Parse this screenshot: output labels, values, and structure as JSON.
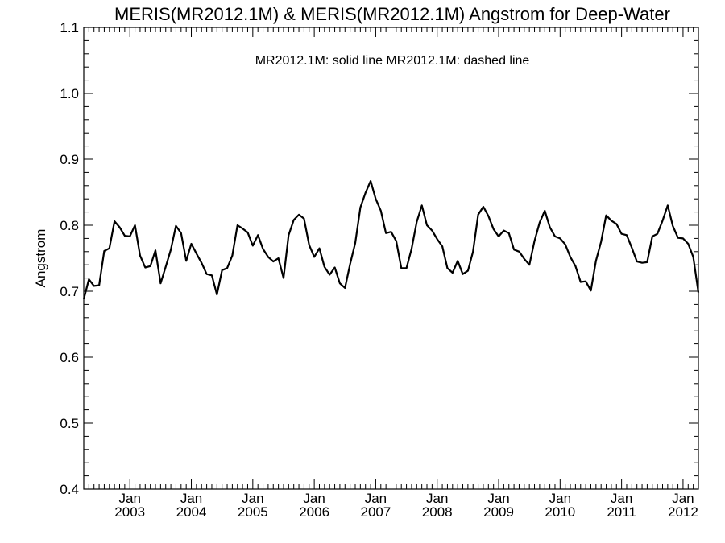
{
  "chart_data": {
    "type": "line",
    "title": "MERIS(MR2012.1M) & MERIS(MR2012.1M)  Angstrom for Deep-Water",
    "annotation": "MR2012.1M: solid line   MR2012.1M: dashed line",
    "xlabel": "",
    "ylabel": "Angstrom",
    "ylim": [
      0.4,
      1.1
    ],
    "yticks": [
      "0.4",
      "0.5",
      "0.6",
      "0.7",
      "0.8",
      "0.9",
      "1.0",
      "1.1"
    ],
    "xlim": [
      "2002-04",
      "2012-04"
    ],
    "xticks": [
      {
        "month": "Jan",
        "year": "2003"
      },
      {
        "month": "Jan",
        "year": "2004"
      },
      {
        "month": "Jan",
        "year": "2005"
      },
      {
        "month": "Jan",
        "year": "2006"
      },
      {
        "month": "Jan",
        "year": "2007"
      },
      {
        "month": "Jan",
        "year": "2008"
      },
      {
        "month": "Jan",
        "year": "2009"
      },
      {
        "month": "Jan",
        "year": "2010"
      },
      {
        "month": "Jan",
        "year": "2011"
      },
      {
        "month": "Jan",
        "year": "2012"
      }
    ],
    "grid": false,
    "series": [
      {
        "style": "solid",
        "x_start": "2002-04",
        "x_step": "1 month",
        "values": [
          0.688,
          0.718,
          0.708,
          0.709,
          0.761,
          0.765,
          0.806,
          0.797,
          0.784,
          0.783,
          0.8,
          0.754,
          0.736,
          0.738,
          0.762,
          0.712,
          0.737,
          0.763,
          0.799,
          0.788,
          0.746,
          0.772,
          0.757,
          0.743,
          0.726,
          0.724,
          0.695,
          0.732,
          0.735,
          0.754,
          0.8,
          0.795,
          0.789,
          0.769,
          0.785,
          0.764,
          0.752,
          0.745,
          0.75,
          0.72,
          0.785,
          0.808,
          0.816,
          0.81,
          0.77,
          0.752,
          0.765,
          0.737,
          0.725,
          0.736,
          0.712,
          0.705,
          0.741,
          0.773,
          0.827,
          0.849,
          0.867,
          0.84,
          0.822,
          0.788,
          0.79,
          0.776,
          0.735,
          0.735,
          0.764,
          0.805,
          0.83,
          0.8,
          0.792,
          0.779,
          0.768,
          0.735,
          0.728,
          0.746,
          0.726,
          0.731,
          0.76,
          0.816,
          0.828,
          0.814,
          0.794,
          0.783,
          0.792,
          0.788,
          0.763,
          0.76,
          0.749,
          0.74,
          0.776,
          0.804,
          0.822,
          0.797,
          0.783,
          0.78,
          0.771,
          0.752,
          0.738,
          0.714,
          0.715,
          0.701,
          0.746,
          0.775,
          0.815,
          0.807,
          0.802,
          0.787,
          0.785,
          0.766,
          0.745,
          0.743,
          0.744,
          0.783,
          0.787,
          0.807,
          0.83,
          0.799,
          0.781,
          0.78,
          0.772,
          0.752,
          0.698
        ]
      }
    ]
  }
}
